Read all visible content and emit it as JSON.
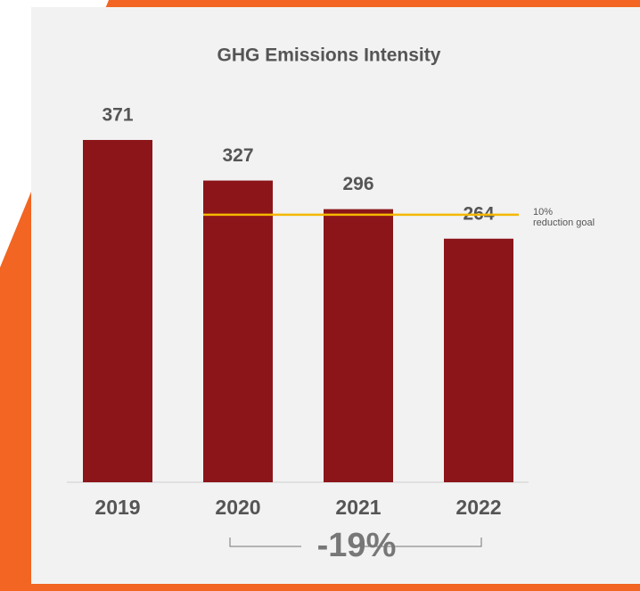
{
  "chart_data": {
    "type": "bar",
    "title": "GHG Emissions Intensity",
    "categories": [
      "2019",
      "2020",
      "2021",
      "2022"
    ],
    "values": [
      371,
      327,
      296,
      264
    ],
    "color": "#8b1519",
    "ylim": [
      0,
      400
    ],
    "reference": {
      "value": 290,
      "label": [
        "10%",
        "reduction goal"
      ],
      "color": "#f5b800"
    },
    "annotation": "-19%"
  }
}
